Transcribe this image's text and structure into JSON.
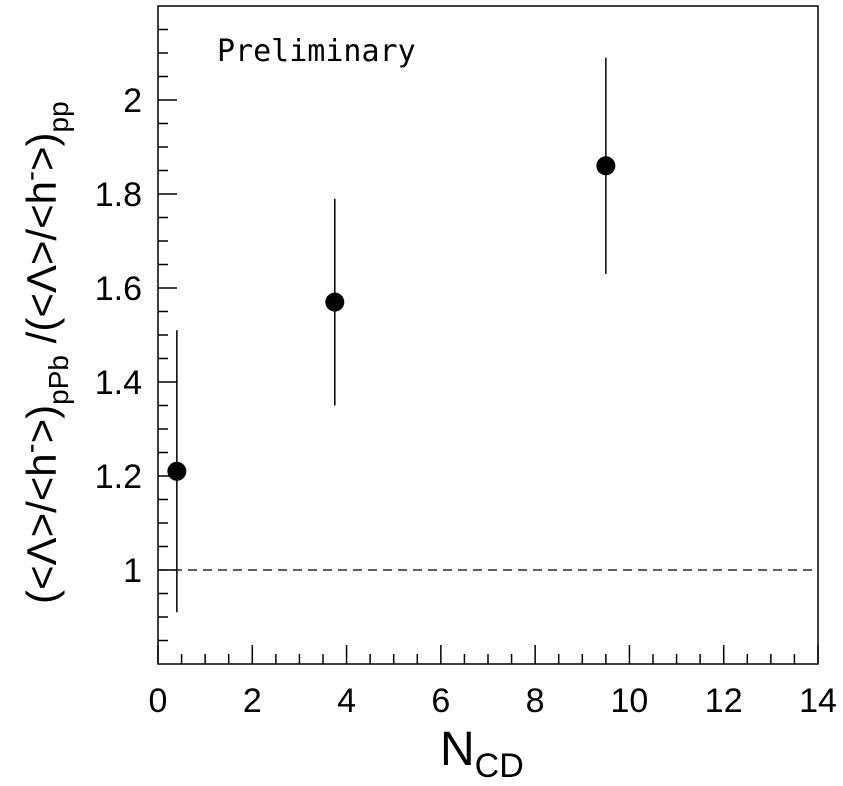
{
  "chart_data": {
    "type": "scatter",
    "annotation": "Preliminary",
    "xlabel": {
      "main": "N",
      "sub": "CD"
    },
    "ylabel": {
      "part1": "(<Λ>/<h",
      "sup1": "-",
      "part2": ">)",
      "sub1": "pPb",
      "part3": " /(<Λ>/<h",
      "sup2": "-",
      "part4": ">)",
      "sub2": "pp"
    },
    "xlim": [
      0,
      14
    ],
    "ylim": [
      0.8,
      2.2
    ],
    "x_ticks": [
      0,
      2,
      4,
      6,
      8,
      10,
      12,
      14
    ],
    "x_tick_labels": [
      "0",
      "2",
      "4",
      "6",
      "8",
      "10",
      "12",
      "14"
    ],
    "y_ticks": [
      1.0,
      1.2,
      1.4,
      1.6,
      1.8,
      2.0
    ],
    "y_tick_labels": [
      "1",
      "1.2",
      "1.4",
      "1.6",
      "1.8",
      "2"
    ],
    "reference_line": {
      "y": 1.0,
      "style": "dashed"
    },
    "points": [
      {
        "x": 0.4,
        "y": 1.21,
        "ylow": 0.91,
        "yhigh": 1.51
      },
      {
        "x": 3.75,
        "y": 1.57,
        "ylow": 1.35,
        "yhigh": 1.79
      },
      {
        "x": 9.5,
        "y": 1.86,
        "ylow": 1.63,
        "yhigh": 2.09
      }
    ],
    "colors": {
      "points": "#000000",
      "annotation": "#87cef0"
    }
  }
}
